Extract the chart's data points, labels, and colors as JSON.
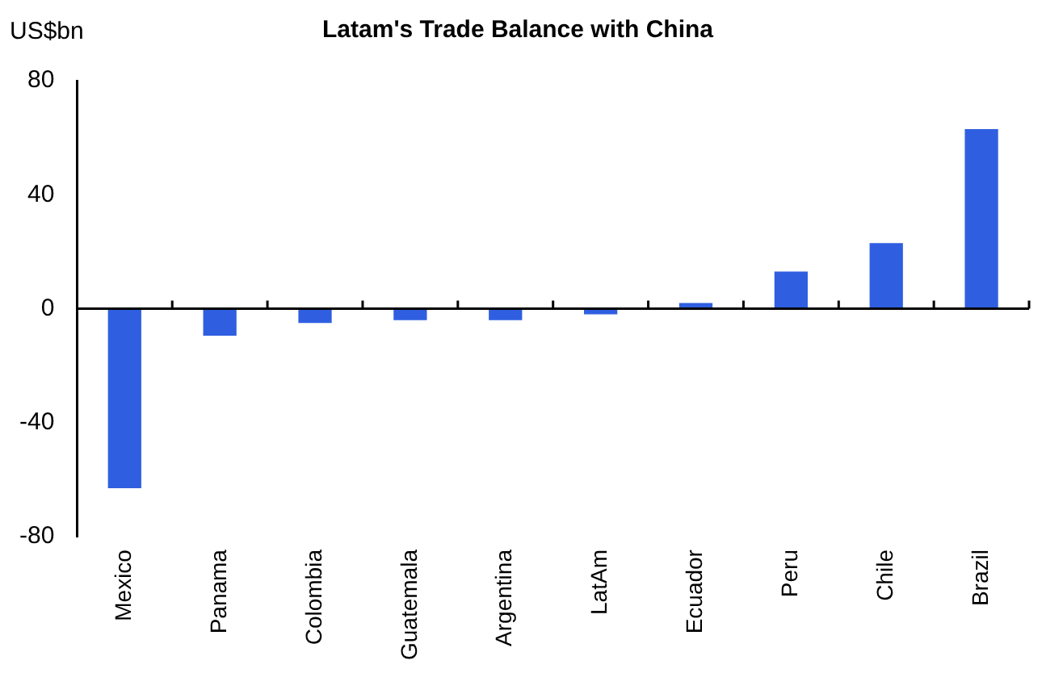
{
  "chart_data": {
    "type": "bar",
    "title": "Latam's Trade Balance with China",
    "ylabel": "US$bn",
    "categories": [
      "Mexico",
      "Panama",
      "Colombia",
      "Guatemala",
      "Argentina",
      "LatAm",
      "Ecuador",
      "Peru",
      "Chile",
      "Brazil"
    ],
    "values": [
      -63,
      -9.5,
      -5,
      -4,
      -4,
      -2,
      2,
      13,
      23,
      63
    ],
    "color": "#2f5fe0",
    "ref_lines": [
      {
        "axis": "y",
        "value": 0,
        "color": "#000000"
      }
    ],
    "ylim": [
      -80,
      80
    ],
    "yticks": [
      -80,
      -40,
      0,
      40,
      80
    ],
    "grid": false,
    "legend": false
  }
}
